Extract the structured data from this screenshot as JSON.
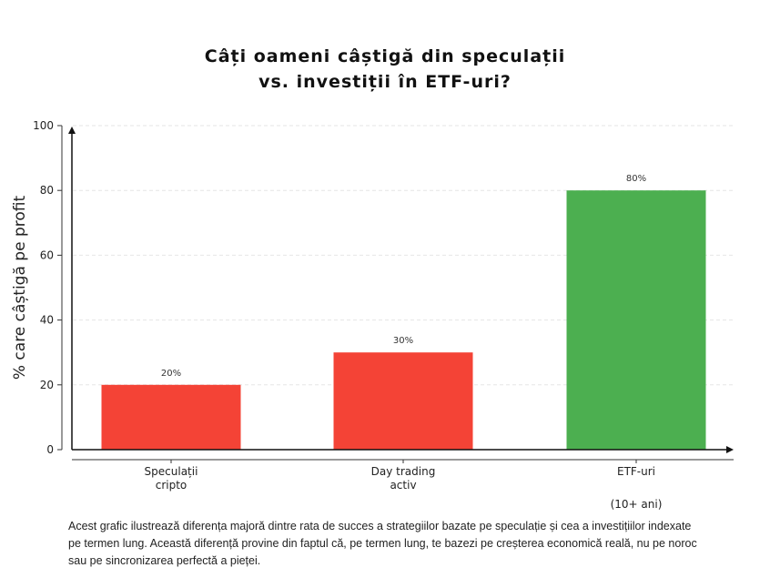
{
  "chart_data": {
    "type": "bar",
    "title_lines": [
      "Câți oameni câștigă din speculații",
      "vs. investiții în ETF-uri?"
    ],
    "categories": [
      [
        "Speculații",
        "cripto"
      ],
      [
        "Day trading",
        "activ"
      ],
      [
        "ETF-uri",
        "",
        "(10+ ani)"
      ]
    ],
    "values": [
      20,
      30,
      80
    ],
    "data_labels": [
      "20%",
      "30%",
      "80%"
    ],
    "colors": [
      "#f44336",
      "#f44336",
      "#4caf50"
    ],
    "ylabel": "% care câștigă pe profit",
    "xlabel": "",
    "ylim": [
      0,
      100
    ],
    "yticks": [
      0,
      20,
      40,
      60,
      80,
      100
    ],
    "grid": "horizontal dashed",
    "legend": "none"
  },
  "description": "Acest grafic ilustrează diferența majoră dintre rata de succes a strategiilor bazate pe speculație și cea a investițiilor indexate pe termen lung. Această diferență provine din faptul că, pe termen lung, te bazezi pe creșterea economică reală, nu pe noroc sau pe sincronizarea perfectă a pieței."
}
